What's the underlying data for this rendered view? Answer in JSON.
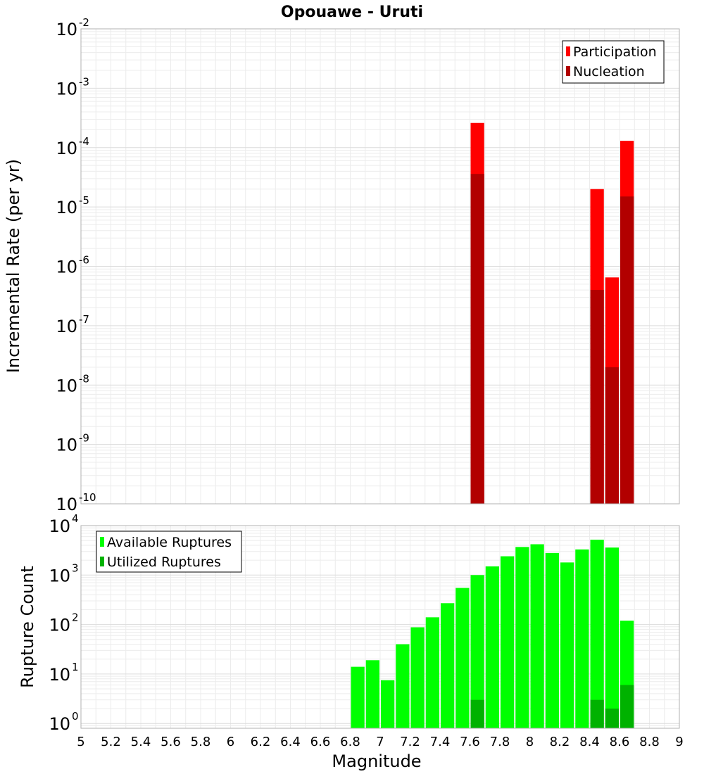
{
  "title": "Opouawe - Uruti",
  "chart_data": [
    {
      "type": "bar",
      "title": "Opouawe - Uruti",
      "xlabel": "",
      "ylabel": "Incremental Rate (per yr)",
      "yscale": "log",
      "ylim": [
        1e-10,
        0.01
      ],
      "xlim": [
        5,
        9
      ],
      "bar_width": 0.1,
      "yticks": [
        {
          "base": "10",
          "exp": "-10"
        },
        {
          "base": "10",
          "exp": "-9"
        },
        {
          "base": "10",
          "exp": "-8"
        },
        {
          "base": "10",
          "exp": "-7"
        },
        {
          "base": "10",
          "exp": "-6"
        },
        {
          "base": "10",
          "exp": "-5"
        },
        {
          "base": "10",
          "exp": "-4"
        },
        {
          "base": "10",
          "exp": "-3"
        },
        {
          "base": "10",
          "exp": "-2"
        }
      ],
      "legend": {
        "placement": "top-right",
        "entries": [
          "Participation",
          "Nucleation"
        ]
      },
      "grid": true,
      "series": [
        {
          "name": "Participation",
          "color": "#ff0000",
          "points": [
            {
              "x": 7.65,
              "y": 0.00026
            },
            {
              "x": 8.45,
              "y": 2e-05
            },
            {
              "x": 8.55,
              "y": 6.5e-07
            },
            {
              "x": 8.65,
              "y": 0.00013
            }
          ]
        },
        {
          "name": "Nucleation",
          "color": "#b20000",
          "points": [
            {
              "x": 7.65,
              "y": 3.6e-05
            },
            {
              "x": 8.45,
              "y": 4e-07
            },
            {
              "x": 8.55,
              "y": 2e-08
            },
            {
              "x": 8.65,
              "y": 1.5e-05
            }
          ]
        }
      ]
    },
    {
      "type": "bar",
      "title": "",
      "xlabel": "Magnitude",
      "ylabel": "Rupture Count",
      "yscale": "log",
      "ylim": [
        0.8,
        10000
      ],
      "xlim": [
        5,
        9
      ],
      "bar_width": 0.1,
      "xticks": [
        "5",
        "5.2",
        "5.4",
        "5.6",
        "5.8",
        "6",
        "6.2",
        "6.4",
        "6.6",
        "6.8",
        "7",
        "7.2",
        "7.4",
        "7.6",
        "7.8",
        "8",
        "8.2",
        "8.4",
        "8.6",
        "8.8",
        "9"
      ],
      "yticks": [
        {
          "base": "10",
          "exp": "0"
        },
        {
          "base": "10",
          "exp": "1"
        },
        {
          "base": "10",
          "exp": "2"
        },
        {
          "base": "10",
          "exp": "3"
        },
        {
          "base": "10",
          "exp": "4"
        }
      ],
      "legend": {
        "placement": "top-left",
        "entries": [
          "Available Ruptures",
          "Utilized Ruptures"
        ]
      },
      "grid": true,
      "series": [
        {
          "name": "Available Ruptures",
          "color": "#00ff00",
          "points": [
            {
              "x": 6.85,
              "y": 14
            },
            {
              "x": 6.95,
              "y": 19
            },
            {
              "x": 7.05,
              "y": 7.5
            },
            {
              "x": 7.15,
              "y": 40
            },
            {
              "x": 7.25,
              "y": 88
            },
            {
              "x": 7.35,
              "y": 140
            },
            {
              "x": 7.45,
              "y": 270
            },
            {
              "x": 7.55,
              "y": 550
            },
            {
              "x": 7.65,
              "y": 1000
            },
            {
              "x": 7.75,
              "y": 1500
            },
            {
              "x": 7.85,
              "y": 2400
            },
            {
              "x": 7.95,
              "y": 3700
            },
            {
              "x": 8.05,
              "y": 4200
            },
            {
              "x": 8.15,
              "y": 2800
            },
            {
              "x": 8.25,
              "y": 1800
            },
            {
              "x": 8.35,
              "y": 3300
            },
            {
              "x": 8.45,
              "y": 5200
            },
            {
              "x": 8.55,
              "y": 3600
            },
            {
              "x": 8.65,
              "y": 120
            }
          ]
        },
        {
          "name": "Utilized Ruptures",
          "color": "#00b200",
          "points": [
            {
              "x": 7.65,
              "y": 3
            },
            {
              "x": 8.45,
              "y": 3
            },
            {
              "x": 8.55,
              "y": 2
            },
            {
              "x": 8.65,
              "y": 6
            }
          ]
        }
      ]
    }
  ]
}
